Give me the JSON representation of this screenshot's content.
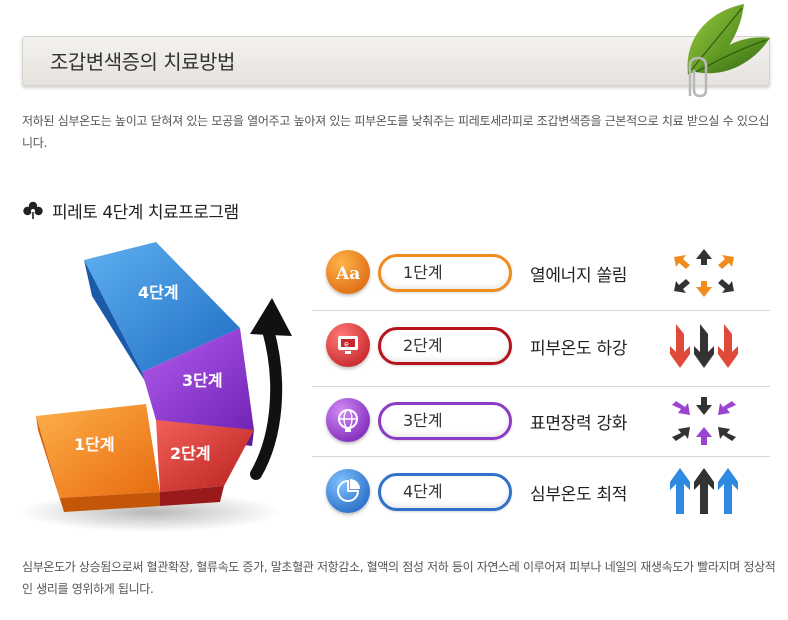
{
  "header": {
    "title": "조갑변색증의 치료방법",
    "decoration": "leaf-paperclip-icon"
  },
  "intro": {
    "text": "저하된 심부온도는 높이고 닫혀져 있는 모공을 열어주고 높아져 있는 피부온도를 낮춰주는 피레토세라피로 조갑변색증을 근본적으로 치료 받으실 수 있으십니다."
  },
  "program": {
    "title": "피레토 4단계 치료프로그램",
    "title_icon": "clover-icon",
    "graphic_labels": {
      "step1": "1단계",
      "step2": "2단계",
      "step3": "3단계",
      "step4": "4단계"
    },
    "steps": [
      {
        "label": "1단계",
        "effect": "열에너지 쏠림",
        "icon": "font-aa-icon",
        "color": "#f08c1e",
        "arrows": "converging-arrows-icon"
      },
      {
        "label": "2단계",
        "effect": "피부온도 하강",
        "icon": "monitor-icon",
        "color": "#c4282e",
        "arrows": "down-arrows-icon"
      },
      {
        "label": "3단계",
        "effect": "표면장력 강화",
        "icon": "globe-icon",
        "color": "#8c3cc4",
        "arrows": "inward-arrows-icon"
      },
      {
        "label": "4단계",
        "effect": "심부온도 최적",
        "icon": "pie-chart-icon",
        "color": "#2e73c8",
        "arrows": "up-arrows-icon"
      }
    ]
  },
  "outro": {
    "text": "심부온도가 상승됨으로써 혈관확장, 혈류속도 증가, 말초혈관 저항감소, 혈액의 점성 저하 등이 자연스레 이루어져 피부나 네일의 재생속도가 빨라지며 정상적인 생리를 영위하게 됩니다."
  },
  "colors": {
    "orange": "#f08c1e",
    "red": "#c4282e",
    "purple": "#8c3cc4",
    "blue": "#2e73c8"
  }
}
